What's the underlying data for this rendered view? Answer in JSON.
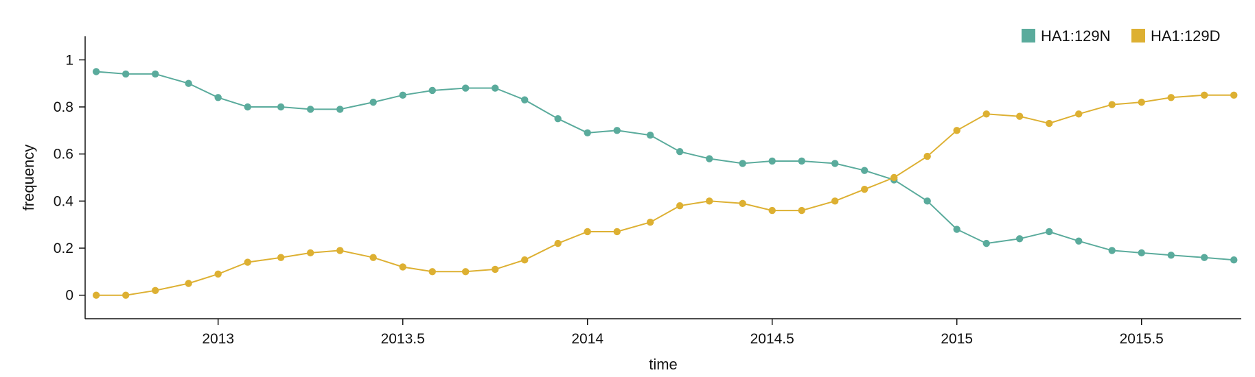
{
  "chart_data": {
    "type": "line",
    "xlabel": "time",
    "ylabel": "frequency",
    "xlim": [
      2012.64,
      2015.77
    ],
    "ylim": [
      -0.1,
      1.1
    ],
    "x_ticks": [
      {
        "value": 2013,
        "label": "2013"
      },
      {
        "value": 2013.5,
        "label": "2013.5"
      },
      {
        "value": 2014,
        "label": "2014"
      },
      {
        "value": 2014.5,
        "label": "2014.5"
      },
      {
        "value": 2015,
        "label": "2015"
      },
      {
        "value": 2015.5,
        "label": "2015.5"
      }
    ],
    "y_ticks": [
      {
        "value": 0,
        "label": "0"
      },
      {
        "value": 0.2,
        "label": "0.2"
      },
      {
        "value": 0.4,
        "label": "0.4"
      },
      {
        "value": 0.6,
        "label": "0.6"
      },
      {
        "value": 0.8,
        "label": "0.8"
      },
      {
        "value": 1,
        "label": "1"
      }
    ],
    "grid": false,
    "legend_position": "top-right",
    "x": [
      2012.67,
      2012.75,
      2012.83,
      2012.92,
      2013.0,
      2013.08,
      2013.17,
      2013.25,
      2013.33,
      2013.42,
      2013.5,
      2013.58,
      2013.67,
      2013.75,
      2013.83,
      2013.92,
      2014.0,
      2014.08,
      2014.17,
      2014.25,
      2014.33,
      2014.42,
      2014.5,
      2014.58,
      2014.67,
      2014.75,
      2014.83,
      2014.92,
      2015.0,
      2015.08,
      2015.17,
      2015.25,
      2015.33,
      2015.42,
      2015.5,
      2015.58,
      2015.67,
      2015.75
    ],
    "series": [
      {
        "name": "HA1:129N",
        "color": "#5aab9c",
        "values": [
          0.95,
          0.94,
          0.94,
          0.9,
          0.84,
          0.8,
          0.8,
          0.79,
          0.79,
          0.82,
          0.85,
          0.87,
          0.88,
          0.88,
          0.83,
          0.75,
          0.69,
          0.7,
          0.68,
          0.61,
          0.58,
          0.56,
          0.57,
          0.57,
          0.56,
          0.53,
          0.49,
          0.4,
          0.28,
          0.22,
          0.24,
          0.27,
          0.23,
          0.19,
          0.18,
          0.17,
          0.16,
          0.15
        ]
      },
      {
        "name": "HA1:129D",
        "color": "#ddb032",
        "values": [
          0.0,
          0.0,
          0.02,
          0.05,
          0.09,
          0.14,
          0.16,
          0.18,
          0.19,
          0.16,
          0.12,
          0.1,
          0.1,
          0.11,
          0.15,
          0.22,
          0.27,
          0.27,
          0.31,
          0.38,
          0.4,
          0.39,
          0.36,
          0.36,
          0.4,
          0.45,
          0.5,
          0.59,
          0.7,
          0.77,
          0.76,
          0.73,
          0.77,
          0.81,
          0.82,
          0.84,
          0.85,
          0.85
        ]
      }
    ]
  }
}
